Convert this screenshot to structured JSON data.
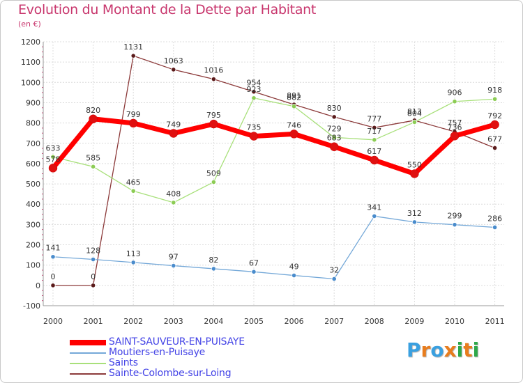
{
  "header": {
    "title": "Evolution du Montant de la Dette par Habitant",
    "unit": "(en €)"
  },
  "logo": {
    "letters": [
      "P",
      "r",
      "o",
      "x",
      "i",
      "t",
      "i"
    ],
    "colors": [
      "#3aa0e0",
      "#e87d1e",
      "#3aa0e0",
      "#e87d1e",
      "#2ea84a",
      "#e87d1e",
      "#2ea84a"
    ]
  },
  "chart_data": {
    "type": "line",
    "title": "Evolution du Montant de la Dette par Habitant",
    "ylabel": "(en €)",
    "xlabel": "",
    "x": [
      "2000",
      "2001",
      "2002",
      "2003",
      "2004",
      "2005",
      "2006",
      "2007",
      "2008",
      "2009",
      "2010",
      "2011"
    ],
    "ylim": [
      -100,
      1200
    ],
    "yticks": [
      "-100",
      "0",
      "100",
      "200",
      "300",
      "400",
      "500",
      "600",
      "700",
      "800",
      "900",
      "1000",
      "1100",
      "1200"
    ],
    "grid": true,
    "legend_position": "bottom-left",
    "series": [
      {
        "name": "SAINT-SAUVEUR-EN-PUISAYE",
        "color": "#ff0000",
        "marker_color": "#e01010",
        "values": [
          578,
          820,
          799,
          749,
          795,
          735,
          746,
          683,
          617,
          550,
          736,
          792
        ],
        "labels": [
          "578",
          "820",
          "799",
          "749",
          "795",
          "735",
          "746",
          "683",
          "617",
          "550",
          "736",
          "792"
        ]
      },
      {
        "name": "Moutiers-en-Puisaye",
        "color": "#74a8d8",
        "marker_color": "#4a8ccc",
        "values": [
          141,
          128,
          113,
          97,
          82,
          67,
          49,
          32,
          341,
          312,
          299,
          286
        ],
        "labels": [
          "141",
          "128",
          "113",
          "97",
          "82",
          "67",
          "49",
          "32",
          "341",
          "312",
          "299",
          "286"
        ]
      },
      {
        "name": "Saints",
        "color": "#a8e07a",
        "marker_color": "#8ccc54",
        "values": [
          633,
          585,
          465,
          408,
          509,
          923,
          882,
          729,
          717,
          804,
          906,
          918
        ],
        "labels": [
          "633",
          "585",
          "465",
          "408",
          "509",
          "923",
          "882",
          "729",
          "717",
          "804",
          "906",
          "918"
        ]
      },
      {
        "name": "Sainte-Colombe-sur-Loing",
        "color": "#8c3a3a",
        "marker_color": "#5a1a1a",
        "values": [
          0,
          0,
          1131,
          1063,
          1016,
          954,
          891,
          830,
          777,
          813,
          757,
          677
        ],
        "labels": [
          "0",
          "0",
          "1131",
          "1063",
          "1016",
          "954",
          "891",
          "830",
          "777",
          "813",
          "757",
          "677"
        ]
      }
    ]
  }
}
